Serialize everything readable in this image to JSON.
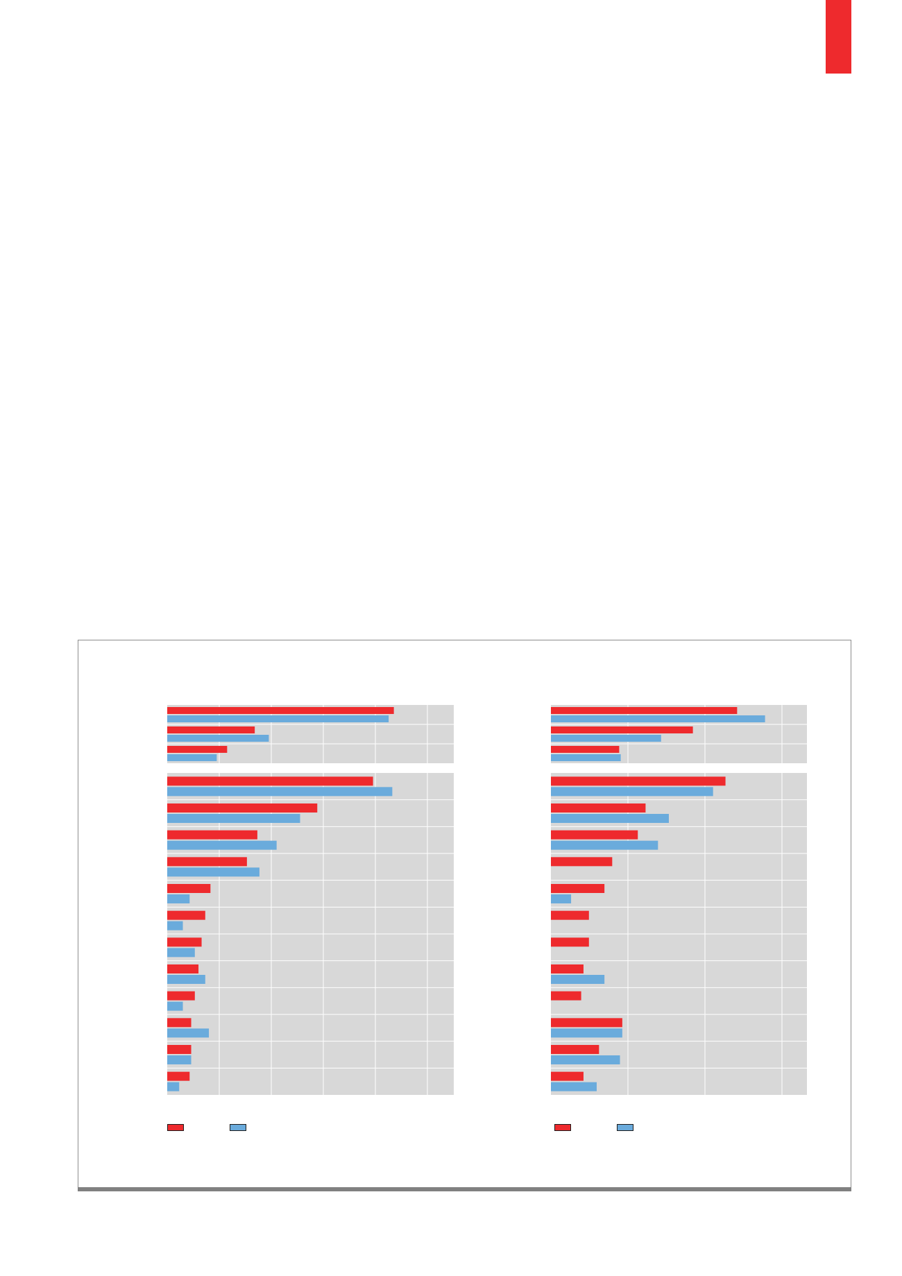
{
  "colors": {
    "accent": "#ee2a2d",
    "series_a": "#ee2a2d",
    "series_b": "#6aabdc",
    "panel_bg": "#d8d8d8",
    "grid": "#ffffff",
    "frame": "#8c8c8c"
  },
  "legend": {
    "left": {
      "series_a_label": "",
      "series_b_label": ""
    },
    "right": {
      "series_a_label": "",
      "series_b_label": ""
    }
  },
  "chart_data": [
    {
      "type": "bar",
      "orientation": "horizontal",
      "title": "",
      "xlabel": "",
      "ylabel": "",
      "xlim": [
        0,
        5.5
      ],
      "grid": true,
      "tick_labels_visible": false,
      "legend_position": "bottom-left",
      "panels": [
        {
          "categories": [
            "",
            "",
            ""
          ],
          "series": [
            {
              "values": [
                4.35,
                1.68,
                1.15
              ]
            },
            {
              "values": [
                4.25,
                1.95,
                0.95
              ]
            }
          ]
        },
        {
          "categories": [
            "",
            "",
            "",
            "",
            "",
            "",
            "",
            "",
            "",
            "",
            "",
            ""
          ],
          "series": [
            {
              "values": [
                3.95,
                2.88,
                1.73,
                1.53,
                0.83,
                0.73,
                0.66,
                0.6,
                0.53,
                0.46,
                0.46,
                0.43
              ]
            },
            {
              "values": [
                4.32,
                2.55,
                2.1,
                1.77,
                0.43,
                0.3,
                0.53,
                0.73,
                0.3,
                0.8,
                0.46,
                0.23
              ]
            }
          ]
        }
      ]
    },
    {
      "type": "bar",
      "orientation": "horizontal",
      "title": "",
      "xlabel": "",
      "ylabel": "",
      "xlim": [
        0,
        3.3
      ],
      "grid": true,
      "tick_labels_visible": false,
      "legend_position": "bottom-left",
      "panels": [
        {
          "categories": [
            "",
            "",
            ""
          ],
          "series": [
            {
              "values": [
                2.4,
                1.83,
                0.88
              ]
            },
            {
              "values": [
                2.76,
                1.42,
                0.9
              ]
            }
          ]
        },
        {
          "categories": [
            "",
            "",
            "",
            "",
            "",
            "",
            "",
            "",
            "",
            "",
            "",
            ""
          ],
          "series": [
            {
              "values": [
                2.25,
                1.22,
                1.12,
                0.79,
                0.69,
                0.49,
                0.49,
                0.42,
                0.39,
                0.92,
                0.62,
                0.42
              ]
            },
            {
              "values": [
                2.09,
                1.52,
                1.38,
                0,
                0.26,
                0,
                0,
                0.69,
                0,
                0.92,
                0.89,
                0.59
              ]
            }
          ]
        }
      ]
    }
  ]
}
